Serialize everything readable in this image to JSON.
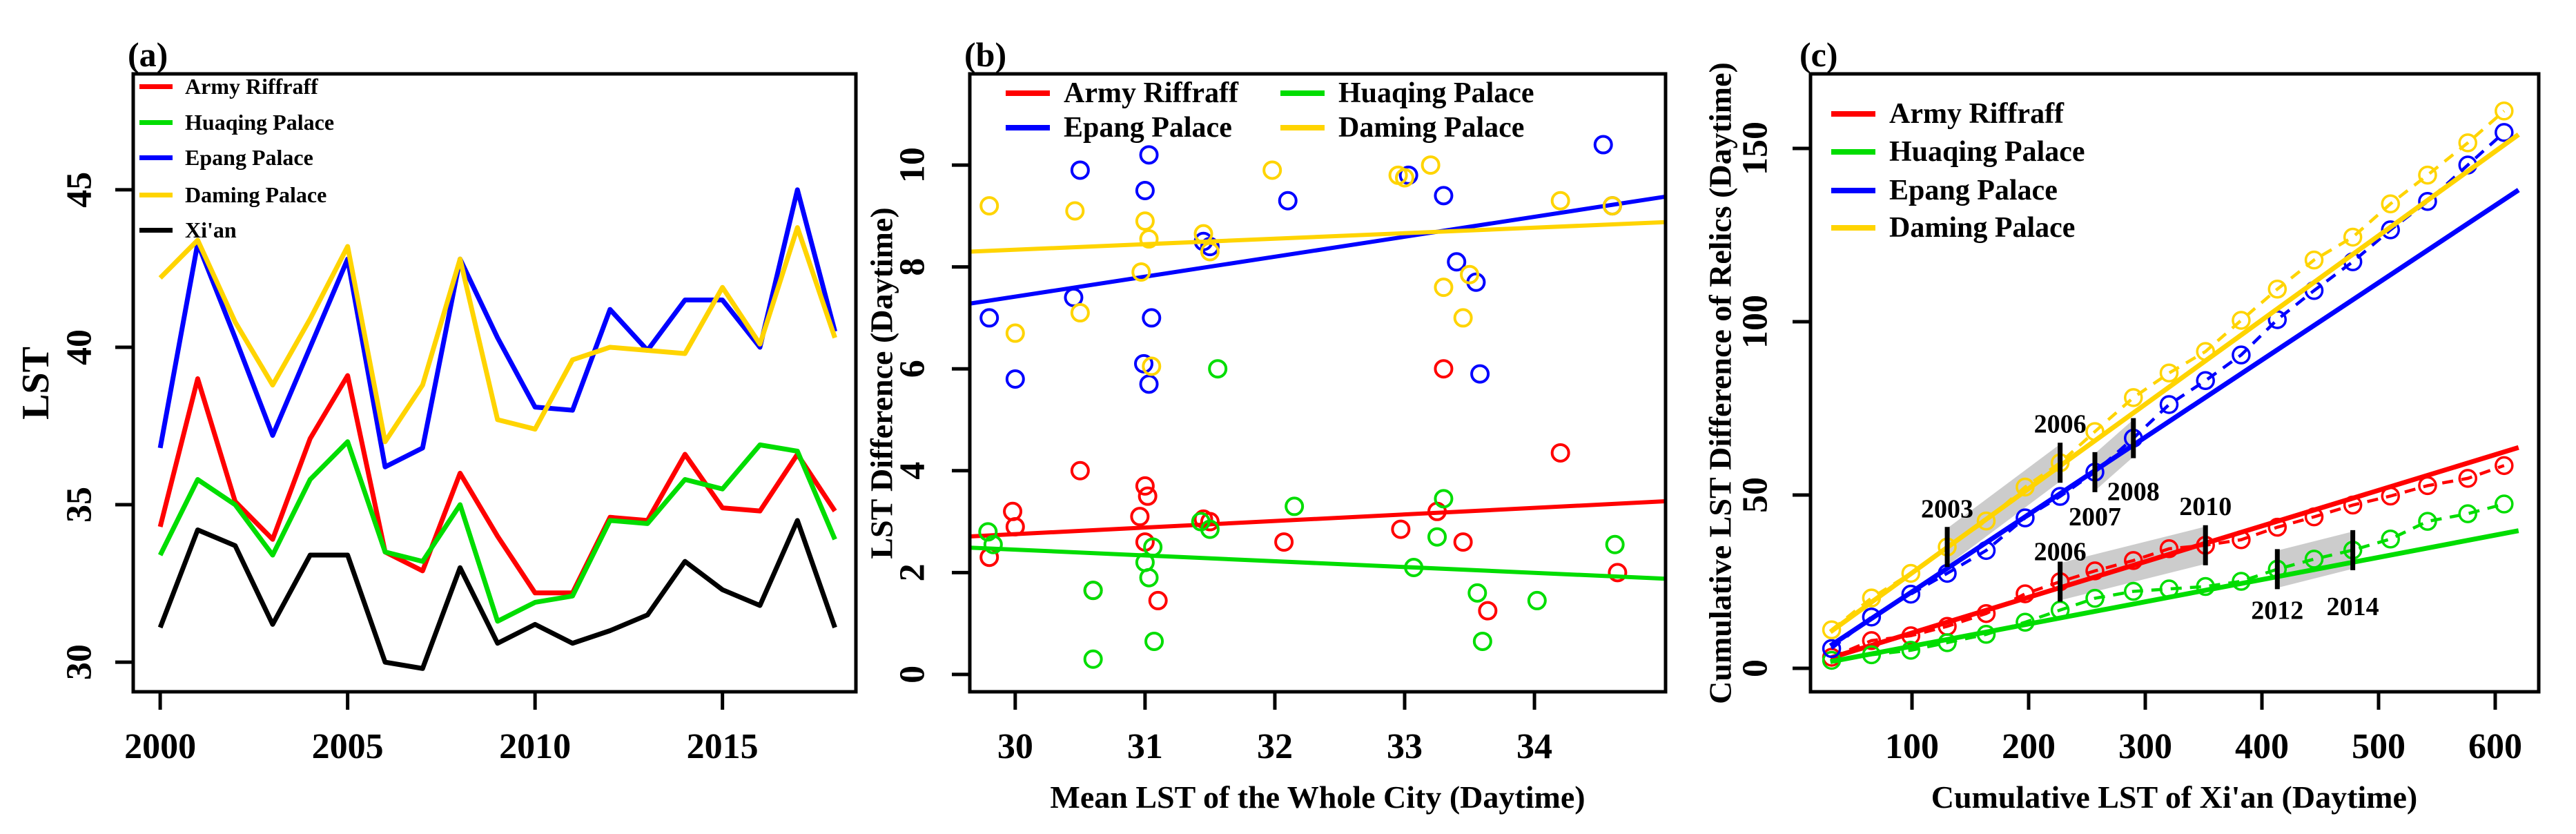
{
  "colors": {
    "army": "#ff0000",
    "huaqing": "#00dd00",
    "epang": "#0000ff",
    "daming": "#ffd400",
    "xian": "#000000",
    "band": "#cccccc",
    "text": "#000000",
    "background": "#ffffff"
  },
  "chart_data": [
    {
      "id": "a",
      "type": "line",
      "tag": "(a)",
      "xlabel": "",
      "ylabel": "LST",
      "xlim": [
        1999.28,
        2018.56
      ],
      "ylim": [
        29.06,
        48.68
      ],
      "xticks": [
        2000,
        2005,
        2010,
        2015
      ],
      "yticks": [
        30,
        35,
        40,
        45
      ],
      "grid": false,
      "legend_position": "top-left",
      "x": [
        2000,
        2001,
        2002,
        2003,
        2004,
        2005,
        2006,
        2007,
        2008,
        2009,
        2010,
        2011,
        2012,
        2013,
        2014,
        2015,
        2016,
        2017,
        2018
      ],
      "series": [
        {
          "name": "Army Riffraff",
          "color": "army",
          "values": [
            34.3,
            39.0,
            35.1,
            33.9,
            37.1,
            39.1,
            33.5,
            32.9,
            36.0,
            34.0,
            32.2,
            32.2,
            34.6,
            34.5,
            36.6,
            34.9,
            34.8,
            36.6,
            34.8
          ]
        },
        {
          "name": "Huaqing Palace",
          "color": "huaqing",
          "values": [
            33.4,
            35.8,
            35.0,
            33.4,
            35.8,
            37.0,
            33.5,
            33.2,
            35.0,
            31.3,
            31.9,
            32.1,
            34.5,
            34.4,
            35.8,
            35.5,
            36.9,
            36.7,
            33.9
          ]
        },
        {
          "name": "Epang Palace",
          "color": "epang",
          "values": [
            36.8,
            43.3,
            40.3,
            37.2,
            40.0,
            42.8,
            36.2,
            36.8,
            42.8,
            40.3,
            38.1,
            38.0,
            41.2,
            39.9,
            41.5,
            41.5,
            40.0,
            45.0,
            40.5
          ]
        },
        {
          "name": "Daming Palace",
          "color": "daming",
          "values": [
            42.2,
            43.4,
            40.8,
            38.8,
            40.9,
            43.2,
            37.0,
            38.8,
            42.8,
            37.7,
            37.4,
            39.6,
            40.0,
            39.9,
            39.8,
            41.9,
            40.1,
            43.8,
            40.3
          ]
        },
        {
          "name": "Xi'an",
          "color": "xian",
          "values": [
            31.1,
            34.2,
            33.7,
            31.2,
            33.4,
            33.4,
            30.0,
            29.8,
            33.0,
            30.6,
            31.2,
            30.6,
            31.0,
            31.5,
            33.2,
            32.3,
            31.8,
            34.5,
            31.1
          ]
        }
      ]
    },
    {
      "id": "b",
      "type": "scatter",
      "tag": "(b)",
      "xlabel": "Mean LST of the Whole City (Daytime)",
      "ylabel": "LST Difference (Daytime)",
      "xlim": [
        29.65,
        35.01
      ],
      "ylim": [
        -0.34,
        11.79
      ],
      "xticks": [
        30,
        31,
        32,
        33,
        34
      ],
      "yticks": [
        0,
        2,
        4,
        6,
        8,
        10
      ],
      "grid": false,
      "legend_position": "top-left-two-columns",
      "series": [
        {
          "name": "Army Riffraff",
          "color": "army",
          "trend": {
            "x1": 29.65,
            "y1": 2.71,
            "x2": 35.01,
            "y2": 3.4
          },
          "points": [
            [
              29.8,
              2.3
            ],
            [
              29.98,
              3.2
            ],
            [
              30.0,
              2.9
            ],
            [
              30.5,
              4.0
            ],
            [
              30.6,
              1.65
            ],
            [
              31.0,
              3.7
            ],
            [
              31.02,
              3.5
            ],
            [
              30.96,
              3.1
            ],
            [
              31.0,
              2.6
            ],
            [
              31.1,
              1.45
            ],
            [
              31.5,
              3.0
            ],
            [
              31.45,
              3.05
            ],
            [
              32.07,
              2.6
            ],
            [
              32.97,
              2.85
            ],
            [
              33.25,
              3.2
            ],
            [
              33.3,
              6.0
            ],
            [
              33.45,
              2.6
            ],
            [
              33.64,
              1.25
            ],
            [
              34.2,
              4.35
            ],
            [
              34.64,
              2.0
            ]
          ]
        },
        {
          "name": "Huaqing Palace",
          "color": "huaqing",
          "trend": {
            "x1": 29.65,
            "y1": 2.49,
            "x2": 35.01,
            "y2": 1.88
          },
          "points": [
            [
              29.79,
              2.8
            ],
            [
              29.83,
              2.55
            ],
            [
              30.6,
              1.65
            ],
            [
              30.6,
              0.3
            ],
            [
              31.0,
              2.2
            ],
            [
              31.03,
              1.9
            ],
            [
              31.06,
              2.5
            ],
            [
              31.07,
              0.65
            ],
            [
              31.43,
              3.0
            ],
            [
              31.5,
              2.85
            ],
            [
              31.56,
              6.0
            ],
            [
              32.15,
              3.3
            ],
            [
              33.07,
              2.1
            ],
            [
              33.25,
              2.7
            ],
            [
              33.3,
              3.45
            ],
            [
              33.56,
              1.6
            ],
            [
              33.6,
              0.65
            ],
            [
              34.02,
              1.45
            ],
            [
              34.62,
              2.55
            ]
          ]
        },
        {
          "name": "Epang Palace",
          "color": "epang",
          "trend": {
            "x1": 29.65,
            "y1": 7.28,
            "x2": 35.01,
            "y2": 9.38
          },
          "points": [
            [
              29.8,
              7.0
            ],
            [
              30.0,
              5.8
            ],
            [
              30.45,
              7.4
            ],
            [
              30.5,
              9.9
            ],
            [
              30.99,
              6.1
            ],
            [
              31.0,
              9.5
            ],
            [
              31.03,
              10.2
            ],
            [
              31.03,
              5.7
            ],
            [
              31.05,
              7.0
            ],
            [
              31.45,
              8.5
            ],
            [
              32.1,
              9.3
            ],
            [
              33.03,
              9.8
            ],
            [
              33.3,
              9.4
            ],
            [
              33.4,
              8.1
            ],
            [
              33.55,
              7.7
            ],
            [
              33.58,
              5.9
            ],
            [
              34.53,
              10.4
            ],
            [
              34.6,
              9.2
            ],
            [
              31.5,
              8.4
            ]
          ]
        },
        {
          "name": "Daming Palace",
          "color": "daming",
          "trend": {
            "x1": 29.65,
            "y1": 8.3,
            "x2": 35.01,
            "y2": 8.88
          },
          "points": [
            [
              29.8,
              9.2
            ],
            [
              30.0,
              6.7
            ],
            [
              30.46,
              9.1
            ],
            [
              30.5,
              7.1
            ],
            [
              30.97,
              7.9
            ],
            [
              31.0,
              8.9
            ],
            [
              31.03,
              8.55
            ],
            [
              31.05,
              6.05
            ],
            [
              31.45,
              8.65
            ],
            [
              31.5,
              8.3
            ],
            [
              31.98,
              9.9
            ],
            [
              32.95,
              9.8
            ],
            [
              33.0,
              9.75
            ],
            [
              33.2,
              10.0
            ],
            [
              33.3,
              7.6
            ],
            [
              33.45,
              7.0
            ],
            [
              33.5,
              7.85
            ],
            [
              34.2,
              9.3
            ],
            [
              34.6,
              9.2
            ]
          ]
        }
      ]
    },
    {
      "id": "c",
      "type": "line+scatter",
      "tag": "(c)",
      "xlabel": "Cumulative LST of Xi'an (Daytime)",
      "ylabel": "Cumulative LST Difference of Relics (Daytime)",
      "xlim": [
        13.0,
        637.3
      ],
      "ylim": [
        -6.77,
        171.5
      ],
      "xticks": [
        100,
        200,
        300,
        400,
        500,
        600
      ],
      "yticks": [
        0,
        50,
        100,
        150
      ],
      "grid": false,
      "legend_position": "top-left",
      "cum_x": [
        31.1,
        65.3,
        99.0,
        130.2,
        163.6,
        197.0,
        227.0,
        256.8,
        289.8,
        320.4,
        351.6,
        382.2,
        413.2,
        444.7,
        477.9,
        510.2,
        542.0,
        576.5,
        607.6
      ],
      "series": [
        {
          "name": "Army Riffraff",
          "color": "army",
          "fit": {
            "x1": 30,
            "y1": 3.0,
            "x2": 620,
            "y2": 63.7
          },
          "cum_y": [
            3.2,
            8.0,
            9.4,
            12.1,
            15.8,
            21.5,
            25.0,
            28.1,
            31.1,
            34.5,
            35.5,
            37.1,
            40.7,
            43.7,
            47.1,
            49.7,
            52.7,
            54.8,
            58.5
          ]
        },
        {
          "name": "Huaqing Palace",
          "color": "huaqing",
          "fit": {
            "x1": 30,
            "y1": 1.9,
            "x2": 620,
            "y2": 39.7
          },
          "cum_y": [
            2.3,
            3.9,
            5.2,
            7.4,
            9.8,
            13.3,
            16.8,
            20.2,
            22.2,
            22.9,
            23.6,
            25.1,
            28.6,
            31.5,
            34.1,
            37.3,
            42.4,
            44.6,
            47.4
          ]
        },
        {
          "name": "Epang Palace",
          "color": "epang",
          "fit": {
            "x1": 30,
            "y1": 6.5,
            "x2": 620,
            "y2": 138.0
          },
          "cum_y": [
            5.7,
            14.8,
            21.4,
            27.4,
            34.0,
            43.4,
            49.6,
            56.6,
            66.4,
            76.1,
            83.0,
            90.4,
            100.6,
            109.0,
            117.3,
            126.5,
            134.7,
            145.2,
            154.6
          ]
        },
        {
          "name": "Daming Palace",
          "color": "daming",
          "fit": {
            "x1": 30,
            "y1": 10.5,
            "x2": 620,
            "y2": 154.0
          },
          "cum_y": [
            11.1,
            20.3,
            27.4,
            35.0,
            42.5,
            52.3,
            59.3,
            68.3,
            78.1,
            85.2,
            91.4,
            100.4,
            109.4,
            117.8,
            124.4,
            134.0,
            142.3,
            151.6,
            160.8
          ]
        }
      ],
      "bands": [
        {
          "x1": 130.2,
          "y1": 35.0,
          "x2": 227.0,
          "y2": 59.3,
          "series": "daming"
        },
        {
          "x1": 256.8,
          "y1": 56.6,
          "x2": 289.8,
          "y2": 66.4,
          "series": "epang"
        },
        {
          "x1": 227.0,
          "y1": 25.0,
          "x2": 351.6,
          "y2": 35.5,
          "series": "army"
        },
        {
          "x1": 413.2,
          "y1": 28.6,
          "x2": 477.9,
          "y2": 34.1,
          "series": "huaqing"
        }
      ],
      "annotations": [
        {
          "label": "2003",
          "x": 130.2,
          "y": 35.0,
          "label_dy": -43
        },
        {
          "label": "2006",
          "x": 227.0,
          "y": 59.3,
          "label_dy": -44
        },
        {
          "label": "2007",
          "x": 256.8,
          "y": 56.6,
          "label_dy": 77
        },
        {
          "label": "2008",
          "x": 289.8,
          "y": 66.4,
          "label_dy": 90
        },
        {
          "label": "2006",
          "x": 227.0,
          "y": 25.0,
          "label_dy": -31
        },
        {
          "label": "2010",
          "x": 351.6,
          "y": 35.5,
          "label_dy": -44
        },
        {
          "label": "2012",
          "x": 413.2,
          "y": 28.6,
          "label_dy": 72
        },
        {
          "label": "2014",
          "x": 477.9,
          "y": 34.1,
          "label_dy": 94
        }
      ]
    }
  ]
}
